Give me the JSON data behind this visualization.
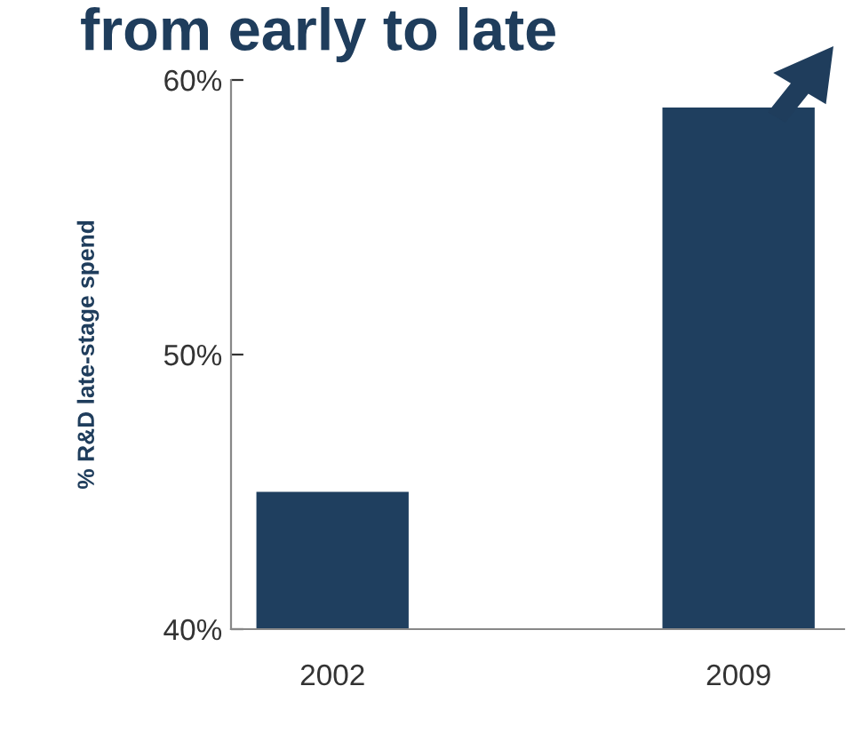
{
  "chart_data": {
    "type": "bar",
    "title": "from early to late",
    "ylabel": "% R&D late-stage spend",
    "categories": [
      "2002",
      "2009"
    ],
    "values": [
      45,
      59
    ],
    "color": "#1f3f5f",
    "ylim": [
      40,
      60
    ],
    "yticks": [
      {
        "value": 40,
        "label": "40%"
      },
      {
        "value": 50,
        "label": "50%"
      },
      {
        "value": 60,
        "label": "60%"
      }
    ],
    "grid": false,
    "legend": false
  }
}
